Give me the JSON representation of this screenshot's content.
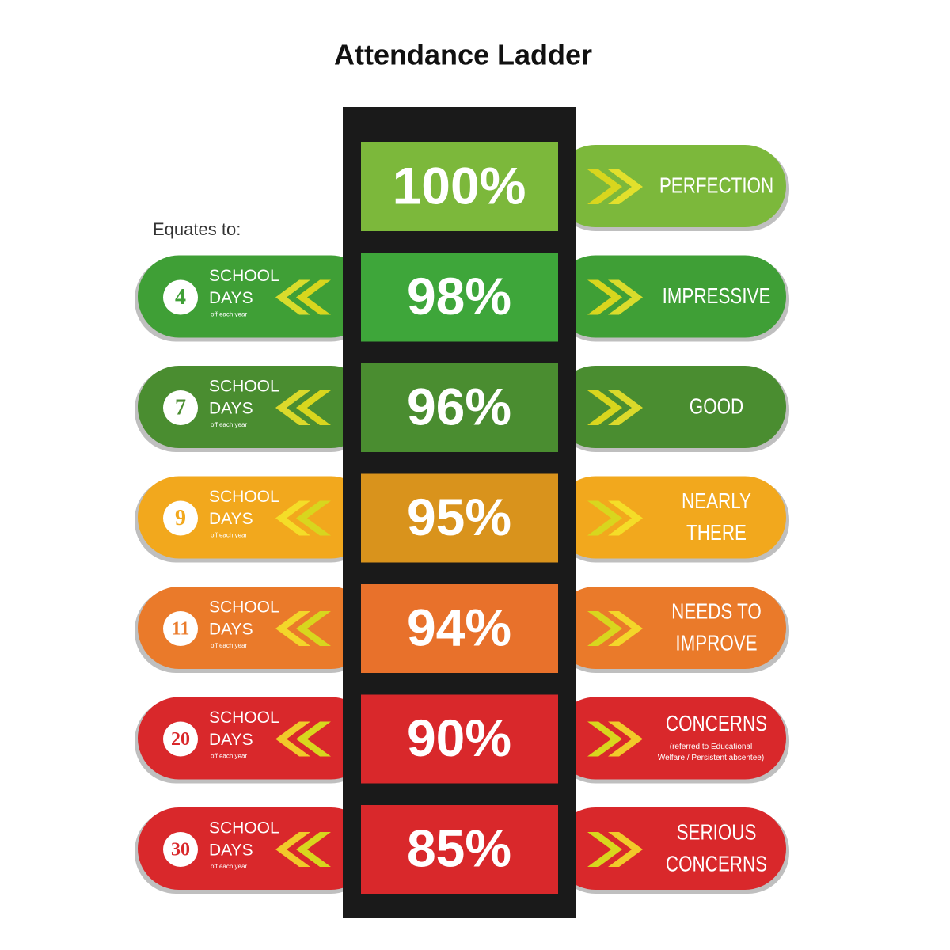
{
  "title": "Attendance Ladder",
  "equates_label": "Equates to:",
  "rungs": [
    {
      "percent": "100%",
      "status": [
        "PERFECTION"
      ],
      "color": "#7cb83b",
      "box_color": "#7cb83b"
    },
    {
      "percent": "98%",
      "days": "4",
      "school": "SCHOOL",
      "days_word": "DAYS",
      "note": "off each year",
      "status": [
        "IMPRESSIVE"
      ],
      "color": "#3f9f36",
      "box_color": "#3ea63a"
    },
    {
      "percent": "96%",
      "days": "7",
      "school": "SCHOOL",
      "days_word": "DAYS",
      "note": "off each year",
      "status": [
        "GOOD"
      ],
      "color": "#4a8d30",
      "box_color": "#4a8d30"
    },
    {
      "percent": "95%",
      "days": "9",
      "school": "SCHOOL",
      "days_word": "DAYS",
      "note": "off each year",
      "status": [
        "NEARLY",
        "THERE"
      ],
      "color": "#f2a81d",
      "box_color": "#d9931c"
    },
    {
      "percent": "94%",
      "days": "11",
      "school": "SCHOOL",
      "days_word": "DAYS",
      "note": "off each year",
      "status": [
        "NEEDS TO",
        "IMPROVE"
      ],
      "color": "#ea7a2a",
      "box_color": "#e8712b"
    },
    {
      "percent": "90%",
      "days": "20",
      "school": "SCHOOL",
      "days_word": "DAYS",
      "note": "off each year",
      "status": [
        "CONCERNS"
      ],
      "sublabel": [
        "(referred to Educational",
        "Welfare / Persistent absentee)"
      ],
      "color": "#d9282b",
      "box_color": "#d9282b"
    },
    {
      "percent": "85%",
      "days": "30",
      "school": "SCHOOL",
      "days_word": "DAYS",
      "note": "off each year",
      "status": [
        "SERIOUS",
        "CONCERNS"
      ],
      "color": "#d9282b",
      "box_color": "#d9282b"
    }
  ]
}
